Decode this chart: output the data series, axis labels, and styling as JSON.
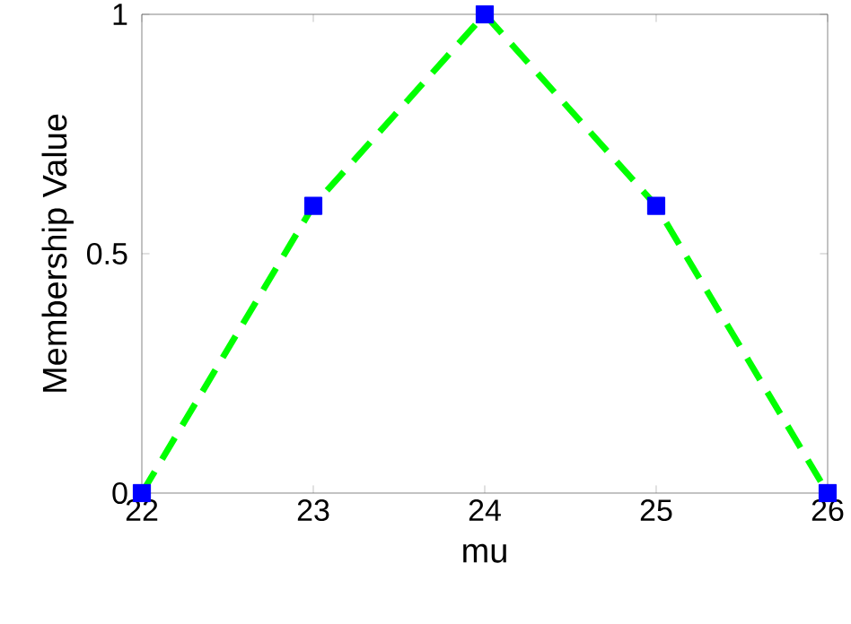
{
  "chart_data": {
    "type": "line",
    "xlabel": "mu",
    "ylabel": "Membership Value",
    "x": [
      22,
      23,
      24,
      25,
      26
    ],
    "series": [
      {
        "color": "#00ff00",
        "values": [
          0,
          0.6,
          1,
          0.6,
          0
        ],
        "line_style": "dashed"
      },
      {
        "type": "scatter",
        "color": "#0000ff",
        "values": [
          0,
          0.6,
          1,
          0.6,
          0
        ],
        "marker": "square"
      }
    ],
    "xlim": [
      22,
      26
    ],
    "ylim": [
      0,
      1
    ],
    "xticks": [
      22,
      23,
      24,
      25,
      26
    ],
    "yticks": [
      0,
      0.5,
      1
    ]
  }
}
